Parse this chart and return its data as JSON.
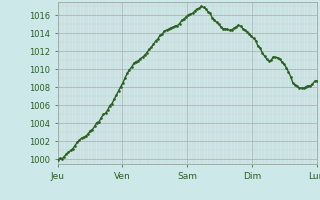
{
  "bg_color": "#cce8e8",
  "plot_bg_color": "#cce8e8",
  "grid_major_color": "#aaaaaa",
  "grid_minor_color": "#cccccc",
  "line_color": "#2a6020",
  "line_width": 1.0,
  "marker": ".",
  "marker_size": 1.8,
  "ylim": [
    999.5,
    1017.5
  ],
  "yticks": [
    1000,
    1002,
    1004,
    1006,
    1008,
    1010,
    1012,
    1014,
    1016
  ],
  "tick_color": "#2a6020",
  "day_labels": [
    "Jeu",
    "Ven",
    "Sam",
    "Dim",
    "Lun"
  ],
  "n_points": 120,
  "pressure_values": [
    1000.0,
    1000.05,
    1000.1,
    1000.25,
    1000.5,
    1000.8,
    1001.0,
    1001.3,
    1001.6,
    1001.9,
    1002.1,
    1002.3,
    1002.5,
    1002.7,
    1002.9,
    1003.1,
    1003.4,
    1003.7,
    1004.0,
    1004.3,
    1004.6,
    1004.9,
    1005.2,
    1005.5,
    1005.9,
    1006.3,
    1006.7,
    1007.1,
    1007.6,
    1008.1,
    1008.6,
    1009.1,
    1009.6,
    1010.0,
    1010.3,
    1010.6,
    1010.8,
    1011.0,
    1011.2,
    1011.4,
    1011.6,
    1011.9,
    1012.2,
    1012.5,
    1012.8,
    1013.1,
    1013.4,
    1013.7,
    1014.0,
    1014.2,
    1014.4,
    1014.5,
    1014.6,
    1014.7,
    1014.85,
    1015.0,
    1015.2,
    1015.4,
    1015.6,
    1015.8,
    1015.95,
    1016.1,
    1016.35,
    1016.55,
    1016.7,
    1016.85,
    1016.9,
    1016.8,
    1016.65,
    1016.45,
    1016.15,
    1015.85,
    1015.55,
    1015.25,
    1014.95,
    1014.75,
    1014.6,
    1014.55,
    1014.5,
    1014.4,
    1014.5,
    1014.6,
    1014.75,
    1014.85,
    1014.75,
    1014.55,
    1014.35,
    1014.15,
    1013.9,
    1013.65,
    1013.4,
    1013.1,
    1012.7,
    1012.3,
    1011.9,
    1011.5,
    1011.1,
    1010.9,
    1011.1,
    1011.35,
    1011.45,
    1011.35,
    1011.1,
    1010.85,
    1010.55,
    1010.15,
    1009.65,
    1009.15,
    1008.65,
    1008.35,
    1008.15,
    1008.05,
    1007.95,
    1007.9,
    1008.0,
    1008.1,
    1008.25,
    1008.45,
    1008.65,
    1008.85
  ]
}
